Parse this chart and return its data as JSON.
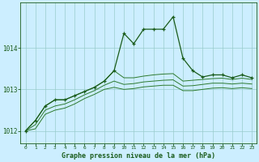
{
  "title": "Graphe pression niveau de la mer (hPa)",
  "background_color": "#cceeff",
  "grid_color": "#99cccc",
  "line_color_main": "#1a5c1a",
  "line_color_band": "#2d7a2d",
  "xlim": [
    -0.5,
    23.5
  ],
  "ylim": [
    1011.7,
    1015.1
  ],
  "yticks": [
    1012,
    1013,
    1014
  ],
  "xticks": [
    0,
    1,
    2,
    3,
    4,
    5,
    6,
    7,
    8,
    9,
    10,
    11,
    12,
    13,
    14,
    15,
    16,
    17,
    18,
    19,
    20,
    21,
    22,
    23
  ],
  "x": [
    0,
    1,
    2,
    3,
    4,
    5,
    6,
    7,
    8,
    9,
    10,
    11,
    12,
    13,
    14,
    15,
    16,
    17,
    18,
    19,
    20,
    21,
    22,
    23
  ],
  "y_main": [
    1012.0,
    1012.25,
    1012.6,
    1012.75,
    1012.75,
    1012.85,
    1012.95,
    1013.05,
    1013.2,
    1013.45,
    1014.35,
    1014.1,
    1014.45,
    1014.45,
    1014.45,
    1014.75,
    1013.75,
    1013.45,
    1013.3,
    1013.35,
    1013.35,
    1013.28,
    1013.35,
    1013.28
  ],
  "y_band1": [
    1012.0,
    1012.25,
    1012.6,
    1012.75,
    1012.75,
    1012.85,
    1012.95,
    1013.05,
    1013.2,
    1013.45,
    1013.28,
    1013.28,
    1013.32,
    1013.35,
    1013.37,
    1013.38,
    1013.2,
    1013.22,
    1013.24,
    1013.26,
    1013.27,
    1013.24,
    1013.27,
    1013.24
  ],
  "y_band2": [
    1012.0,
    1012.15,
    1012.5,
    1012.6,
    1012.65,
    1012.75,
    1012.87,
    1012.97,
    1013.1,
    1013.2,
    1013.12,
    1013.14,
    1013.18,
    1013.2,
    1013.22,
    1013.23,
    1013.08,
    1013.09,
    1013.12,
    1013.15,
    1013.15,
    1013.13,
    1013.15,
    1013.13
  ],
  "y_band3": [
    1012.0,
    1012.05,
    1012.4,
    1012.5,
    1012.55,
    1012.65,
    1012.78,
    1012.88,
    1013.0,
    1013.05,
    1013.0,
    1013.02,
    1013.06,
    1013.08,
    1013.1,
    1013.1,
    1012.97,
    1012.97,
    1013.0,
    1013.03,
    1013.04,
    1013.02,
    1013.04,
    1013.02
  ]
}
